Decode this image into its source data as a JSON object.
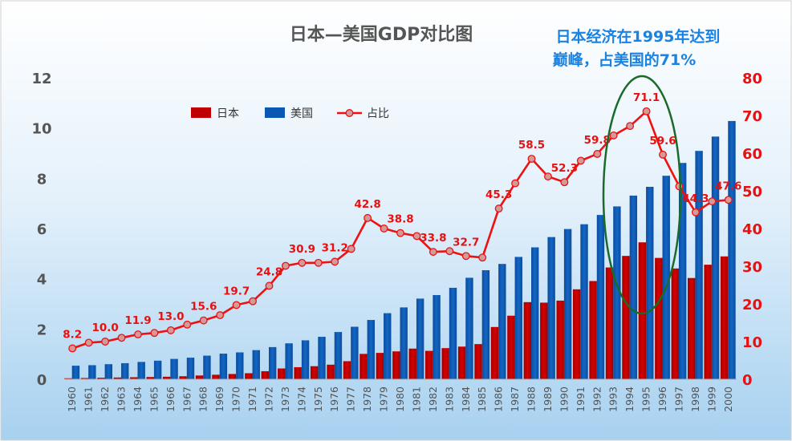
{
  "chart_data": {
    "type": "bar",
    "title": "日本—美国GDP对比图",
    "annotation": [
      "日本经济在1995年达到",
      "巅峰，占美国的71%"
    ],
    "categories": [
      "1960",
      "1961",
      "1962",
      "1963",
      "1964",
      "1965",
      "1966",
      "1967",
      "1968",
      "1969",
      "1970",
      "1971",
      "1972",
      "1973",
      "1974",
      "1975",
      "1976",
      "1977",
      "1978",
      "1979",
      "1980",
      "1981",
      "1982",
      "1983",
      "1984",
      "1985",
      "1986",
      "1987",
      "1988",
      "1989",
      "1990",
      "1991",
      "1992",
      "1993",
      "1994",
      "1995",
      "1996",
      "1997",
      "1998",
      "1999",
      "2000"
    ],
    "series": [
      {
        "name": "日本",
        "type": "bar",
        "axis": "left",
        "color": "#c00000",
        "values": [
          0.04,
          0.05,
          0.06,
          0.07,
          0.08,
          0.09,
          0.1,
          0.12,
          0.15,
          0.18,
          0.21,
          0.24,
          0.32,
          0.43,
          0.48,
          0.52,
          0.58,
          0.72,
          1.01,
          1.05,
          1.11,
          1.22,
          1.13,
          1.24,
          1.3,
          1.4,
          2.08,
          2.53,
          3.07,
          3.05,
          3.13,
          3.58,
          3.91,
          4.45,
          4.91,
          5.45,
          4.83,
          4.41,
          4.03,
          4.56,
          4.89
        ]
      },
      {
        "name": "美国",
        "type": "bar",
        "axis": "left",
        "color": "#0a58b2",
        "values": [
          0.54,
          0.56,
          0.6,
          0.64,
          0.69,
          0.74,
          0.81,
          0.86,
          0.94,
          1.02,
          1.07,
          1.16,
          1.28,
          1.43,
          1.55,
          1.69,
          1.88,
          2.09,
          2.36,
          2.63,
          2.86,
          3.21,
          3.35,
          3.64,
          4.04,
          4.34,
          4.59,
          4.87,
          5.25,
          5.66,
          5.98,
          6.17,
          6.54,
          6.88,
          7.31,
          7.66,
          8.1,
          8.61,
          9.09,
          9.66,
          10.28
        ]
      },
      {
        "name": "占比",
        "type": "line",
        "axis": "right",
        "color": "#ee1111",
        "values": [
          8.2,
          9.7,
          10.0,
          11.0,
          11.9,
          12.3,
          13.0,
          14.5,
          15.6,
          17.0,
          19.7,
          20.7,
          24.8,
          30.1,
          30.9,
          30.9,
          31.2,
          34.6,
          42.8,
          40.0,
          38.8,
          38.0,
          33.8,
          34.0,
          32.7,
          32.3,
          45.3,
          52.0,
          58.5,
          53.8,
          52.3,
          58.0,
          59.8,
          64.7,
          67.2,
          71.1,
          59.6,
          51.2,
          44.3,
          47.2,
          47.6
        ]
      }
    ],
    "line_labels": [
      {
        "index": 0,
        "text": "8.2"
      },
      {
        "index": 2,
        "text": "10.0"
      },
      {
        "index": 4,
        "text": "11.9"
      },
      {
        "index": 6,
        "text": "13.0"
      },
      {
        "index": 8,
        "text": "15.6"
      },
      {
        "index": 10,
        "text": "19.7"
      },
      {
        "index": 12,
        "text": "24.8"
      },
      {
        "index": 14,
        "text": "30.9"
      },
      {
        "index": 16,
        "text": "31.2"
      },
      {
        "index": 18,
        "text": "42.8"
      },
      {
        "index": 20,
        "text": "38.8"
      },
      {
        "index": 22,
        "text": "33.8"
      },
      {
        "index": 24,
        "text": "32.7"
      },
      {
        "index": 26,
        "text": "45.3"
      },
      {
        "index": 28,
        "text": "58.5"
      },
      {
        "index": 30,
        "text": "52.3"
      },
      {
        "index": 32,
        "text": "59.8"
      },
      {
        "index": 35,
        "text": "71.1"
      },
      {
        "index": 36,
        "text": "59.6"
      },
      {
        "index": 38,
        "text": "44.3"
      },
      {
        "index": 40,
        "text": "47.6"
      }
    ],
    "left_axis": {
      "ylim": [
        0,
        12
      ],
      "ticks": [
        "0",
        "2",
        "4",
        "6",
        "8",
        "10",
        "12"
      ]
    },
    "right_axis": {
      "ylim": [
        0,
        80
      ],
      "ticks": [
        "0",
        "10",
        "20",
        "30",
        "40",
        "50",
        "60",
        "70",
        "80"
      ]
    },
    "legend_position": "top-left, inside plot",
    "grid": false
  }
}
